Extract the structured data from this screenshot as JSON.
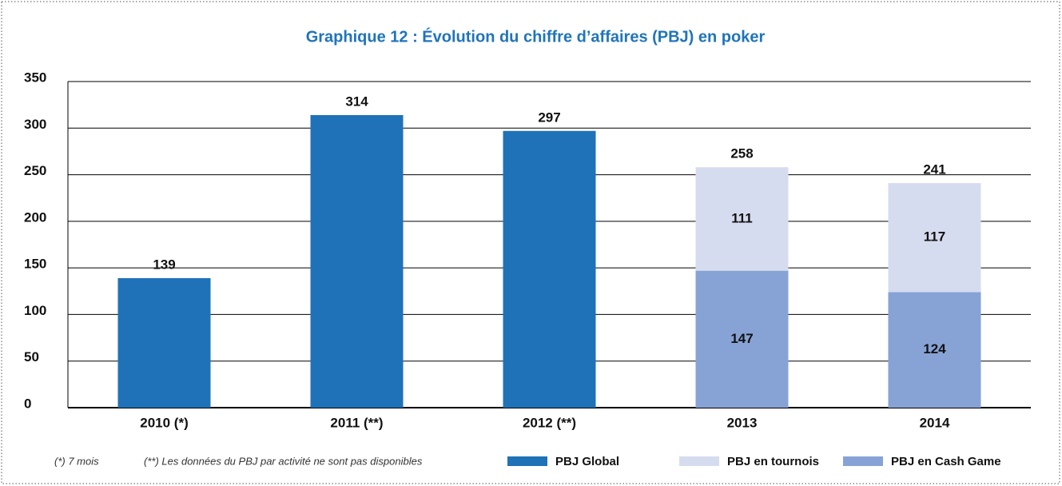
{
  "chart_data": {
    "type": "stacked_bar",
    "title": "Graphique 12 : Évolution du chiffre d’affaires (PBJ) en poker",
    "categories": [
      "2010 (*)",
      "2011 (**)",
      "2012 (**)",
      "2013",
      "2014"
    ],
    "series": [
      {
        "name": "PBJ Global",
        "color": "#1f72b8",
        "values": [
          139,
          314,
          297,
          null,
          null
        ]
      },
      {
        "name": "PBJ en tournois",
        "color": "#d6dcef",
        "values": [
          null,
          null,
          null,
          111,
          117
        ]
      },
      {
        "name": "PBJ en Cash Game",
        "color": "#87a3d6",
        "values": [
          null,
          null,
          null,
          147,
          124
        ]
      }
    ],
    "totals": [
      null,
      null,
      null,
      258,
      241
    ],
    "ylim": [
      0,
      350
    ],
    "yticks": [
      0,
      50,
      100,
      150,
      200,
      250,
      300,
      350
    ],
    "grid": true,
    "legend": "bottom",
    "notes": [
      "(*) 7 mois",
      "(**) Les données du PBJ par activité ne sont pas disponibles"
    ]
  }
}
